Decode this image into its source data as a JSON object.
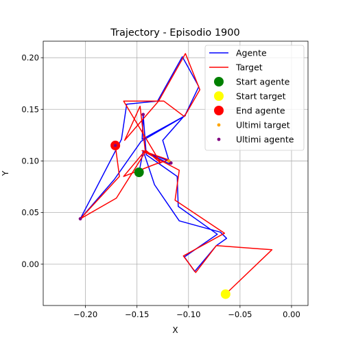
{
  "chart_data": {
    "type": "line",
    "title": "Trajectory - Episodio 1900",
    "xlabel": "X",
    "ylabel": "Y",
    "xlim": [
      -0.241,
      0.016
    ],
    "ylim": [
      -0.04,
      0.216
    ],
    "xticks": [
      -0.2,
      -0.15,
      -0.1,
      -0.05,
      0.0
    ],
    "xtick_labels": [
      "−0.20",
      "−0.15",
      "−0.10",
      "−0.05",
      "0.00"
    ],
    "yticks": [
      0.0,
      0.05,
      0.1,
      0.15,
      0.2
    ],
    "ytick_labels": [
      "0.00",
      "0.05",
      "0.10",
      "0.15",
      "0.20"
    ],
    "grid": true,
    "legend_position": "top-right",
    "colors": {
      "agente": "#0000ff",
      "target": "#ff0000",
      "start_agente": "#008000",
      "start_target": "#ffff00",
      "end_agente": "#ff0000",
      "ultimi_target": "#ffa500",
      "ultimi_agente": "#800080"
    },
    "series": [
      {
        "name": "Agente",
        "kind": "line",
        "color": "#0000ff",
        "points": [
          [
            -0.148,
            0.089
          ],
          [
            -0.144,
            0.11
          ],
          [
            -0.118,
            0.097
          ],
          [
            -0.125,
            0.12
          ],
          [
            -0.103,
            0.145
          ],
          [
            -0.09,
            0.172
          ],
          [
            -0.106,
            0.201
          ],
          [
            -0.13,
            0.158
          ],
          [
            -0.16,
            0.155
          ],
          [
            -0.165,
            0.121
          ],
          [
            -0.205,
            0.044
          ],
          [
            -0.172,
            0.082
          ],
          [
            -0.146,
            0.119
          ],
          [
            -0.103,
            0.144
          ],
          [
            -0.145,
            0.121
          ],
          [
            -0.144,
            0.145
          ],
          [
            -0.141,
            0.106
          ],
          [
            -0.111,
            0.085
          ],
          [
            -0.11,
            0.056
          ],
          [
            -0.072,
            0.029
          ],
          [
            -0.104,
            0.007
          ],
          [
            -0.094,
            -0.007
          ],
          [
            -0.073,
            0.018
          ],
          [
            -0.063,
            0.025
          ],
          [
            -0.069,
            0.031
          ],
          [
            -0.109,
            0.042
          ],
          [
            -0.133,
            0.077
          ],
          [
            -0.144,
            0.11
          ],
          [
            -0.117,
            0.099
          ]
        ]
      },
      {
        "name": "Target",
        "kind": "line",
        "color": "#ff0000",
        "points": [
          [
            -0.064,
            -0.029
          ],
          [
            -0.019,
            0.014
          ],
          [
            -0.073,
            0.018
          ],
          [
            -0.093,
            -0.008
          ],
          [
            -0.105,
            0.008
          ],
          [
            -0.065,
            0.03
          ],
          [
            -0.113,
            0.062
          ],
          [
            -0.109,
            0.091
          ],
          [
            -0.145,
            0.11
          ],
          [
            -0.119,
            0.101
          ],
          [
            -0.132,
            0.097
          ],
          [
            -0.163,
            0.085
          ],
          [
            -0.142,
            0.11
          ],
          [
            -0.147,
            0.153
          ],
          [
            -0.162,
            0.12
          ],
          [
            -0.129,
            0.158
          ],
          [
            -0.103,
            0.204
          ],
          [
            -0.089,
            0.169
          ],
          [
            -0.104,
            0.143
          ],
          [
            -0.124,
            0.158
          ],
          [
            -0.163,
            0.158
          ],
          [
            -0.127,
            0.098
          ],
          [
            -0.141,
            0.11
          ],
          [
            -0.17,
            0.064
          ],
          [
            -0.205,
            0.044
          ],
          [
            -0.167,
            0.085
          ],
          [
            -0.171,
            0.115
          ]
        ]
      },
      {
        "name": "Start agente",
        "kind": "point",
        "color": "#008000",
        "points": [
          [
            -0.148,
            0.089
          ]
        ]
      },
      {
        "name": "Start target",
        "kind": "point",
        "color": "#ffff00",
        "points": [
          [
            -0.064,
            -0.029
          ]
        ]
      },
      {
        "name": "End agente",
        "kind": "point",
        "color": "#ff0000",
        "points": [
          [
            -0.171,
            0.115
          ]
        ]
      },
      {
        "name": "Ultimi target",
        "kind": "small_point",
        "color": "#ffa500",
        "points": [
          [
            -0.119,
            0.1
          ],
          [
            -0.171,
            0.115
          ]
        ]
      },
      {
        "name": "Ultimi agente",
        "kind": "small_point",
        "color": "#800080",
        "points": [
          [
            -0.205,
            0.044
          ],
          [
            -0.144,
            0.145
          ],
          [
            -0.117,
            0.098
          ],
          [
            -0.171,
            0.115
          ]
        ]
      }
    ]
  }
}
